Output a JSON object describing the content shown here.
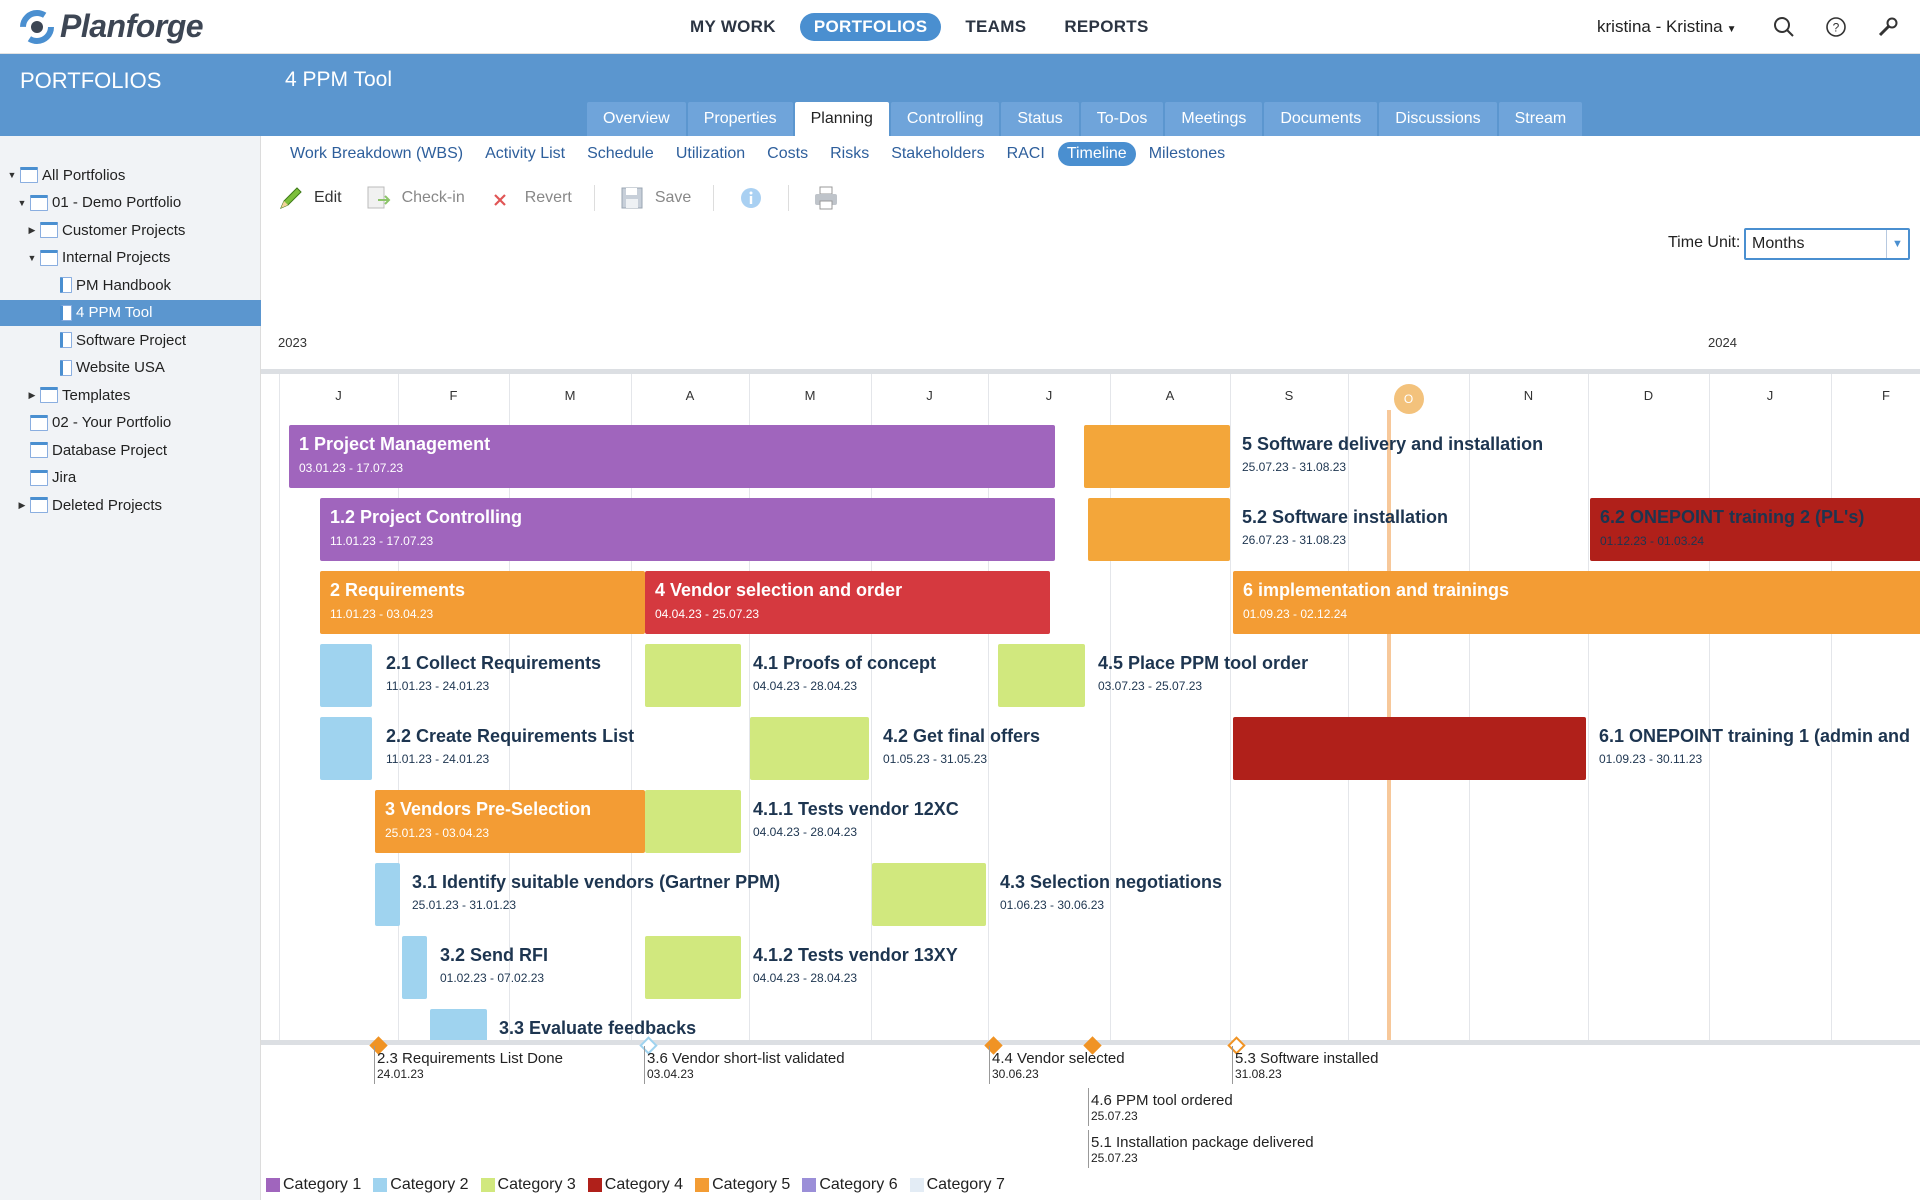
{
  "app": {
    "name": "Planforge",
    "nav": [
      {
        "label": "MY WORK",
        "active": false
      },
      {
        "label": "PORTFOLIOS",
        "active": true
      },
      {
        "label": "TEAMS",
        "active": false
      },
      {
        "label": "REPORTS",
        "active": false
      }
    ],
    "user": "kristina - Kristina"
  },
  "sidebar": {
    "title": "PORTFOLIOS",
    "items": [
      {
        "label": "All Portfolios",
        "level": 0,
        "toggle": "down"
      },
      {
        "label": "01 - Demo Portfolio",
        "level": 1,
        "toggle": "down"
      },
      {
        "label": "Customer Projects",
        "level": 2,
        "toggle": "right"
      },
      {
        "label": "Internal Projects",
        "level": 2,
        "toggle": "down"
      },
      {
        "label": "PM Handbook",
        "level": 3,
        "toggle": ""
      },
      {
        "label": "4 PPM Tool",
        "level": 3,
        "toggle": "",
        "selected": true
      },
      {
        "label": "Software Project",
        "level": 3,
        "toggle": ""
      },
      {
        "label": "Website USA",
        "level": 3,
        "toggle": ""
      },
      {
        "label": "Templates",
        "level": 2,
        "toggle": "right"
      },
      {
        "label": "02 - Your Portfolio",
        "level": 1,
        "toggle": ""
      },
      {
        "label": "Database Project",
        "level": 1,
        "toggle": ""
      },
      {
        "label": "Jira",
        "level": 1,
        "toggle": ""
      },
      {
        "label": "Deleted Projects",
        "level": 1,
        "toggle": "right"
      }
    ]
  },
  "project": {
    "title": "4 PPM Tool"
  },
  "tabs": [
    "Overview",
    "Properties",
    "Planning",
    "Controlling",
    "Status",
    "To-Dos",
    "Meetings",
    "Documents",
    "Discussions",
    "Stream"
  ],
  "active_tab": "Planning",
  "subnav": [
    "Work Breakdown (WBS)",
    "Activity List",
    "Schedule",
    "Utilization",
    "Costs",
    "Risks",
    "Stakeholders",
    "RACI",
    "Timeline",
    "Milestones"
  ],
  "active_subnav": "Timeline",
  "toolbar": {
    "edit": "Edit",
    "checkin": "Check-in",
    "revert": "Revert",
    "save": "Save"
  },
  "time_unit": {
    "label": "Time Unit:",
    "value": "Months"
  },
  "years": [
    "2023",
    "2024"
  ],
  "months": [
    "J",
    "F",
    "M",
    "A",
    "M",
    "J",
    "J",
    "A",
    "S",
    "O",
    "N",
    "D",
    "J",
    "F"
  ],
  "today_month": "O",
  "tasks": [
    {
      "title": "1 Project Management",
      "dates": "03.01.23 - 17.07.23",
      "color": "#a065bd",
      "label": "inside"
    },
    {
      "title": "1.2 Project Controlling",
      "dates": "11.01.23 - 17.07.23",
      "color": "#a065bd",
      "label": "inside"
    },
    {
      "title": "2 Requirements",
      "dates": "11.01.23 - 03.04.23",
      "color": "#f39c34",
      "label": "inside"
    },
    {
      "title": "2.1 Collect Requirements",
      "dates": "11.01.23 - 24.01.23",
      "color": "#9fd3ef",
      "label": "outside"
    },
    {
      "title": "2.2 Create Requirements List",
      "dates": "11.01.23 - 24.01.23",
      "color": "#9fd3ef",
      "label": "outside"
    },
    {
      "title": "3 Vendors Pre-Selection",
      "dates": "25.01.23 - 03.04.23",
      "color": "#f39c34",
      "label": "inside"
    },
    {
      "title": "3.1 Identify suitable vendors (Gartner PPM)",
      "dates": "25.01.23 - 31.01.23",
      "color": "#9fd3ef",
      "label": "outside"
    },
    {
      "title": "3.2 Send RFI",
      "dates": "01.02.23 - 07.02.23",
      "color": "#9fd3ef",
      "label": "outside"
    },
    {
      "title": "3.3 Evaluate feedbacks",
      "dates": "",
      "color": "#9fd3ef",
      "label": "outside"
    },
    {
      "title": "4 Vendor selection and order",
      "dates": "04.04.23 - 25.07.23",
      "color": "#d5393f",
      "label": "inside"
    },
    {
      "title": "4.1 Proofs of concept",
      "dates": "04.04.23 - 28.04.23",
      "color": "#d1e87e",
      "label": "outside"
    },
    {
      "title": "4.2 Get final offers",
      "dates": "01.05.23 - 31.05.23",
      "color": "#d1e87e",
      "label": "outside"
    },
    {
      "title": "4.1.1 Tests vendor 12XC",
      "dates": "04.04.23 - 28.04.23",
      "color": "#d1e87e",
      "label": "outside"
    },
    {
      "title": "4.3 Selection negotiations",
      "dates": "01.06.23 - 30.06.23",
      "color": "#d1e87e",
      "label": "outside"
    },
    {
      "title": "4.1.2 Tests vendor 13XY",
      "dates": "04.04.23 - 28.04.23",
      "color": "#d1e87e",
      "label": "outside"
    },
    {
      "title": "4.5 Place PPM tool order",
      "dates": "03.07.23 - 25.07.23",
      "color": "#d1e87e",
      "label": "outside"
    },
    {
      "title": "5 Software delivery and installation",
      "dates": "25.07.23 - 31.08.23",
      "color": "#f3a63a",
      "label": "outside"
    },
    {
      "title": "5.2 Software installation",
      "dates": "26.07.23 - 31.08.23",
      "color": "#f3a63a",
      "label": "outside"
    },
    {
      "title": "6 implementation and trainings",
      "dates": "01.09.23 - 02.12.24",
      "color": "#f39c34",
      "label": "inside"
    },
    {
      "title": "6.1 ONEPOINT training 1 (admin and",
      "dates": "01.09.23 - 30.11.23",
      "color": "#b0201a",
      "label": "outside"
    },
    {
      "title": "6.2 ONEPOINT training 2 (PL's)",
      "dates": "01.12.23 - 01.03.24",
      "color": "#b0201a",
      "label": "inside-dark"
    }
  ],
  "milestones": [
    {
      "title": "2.3 Requirements List Done",
      "date": "24.01.23",
      "style": "filled"
    },
    {
      "title": "3.6 Vendor short-list validated",
      "date": "03.04.23",
      "style": "lightblue"
    },
    {
      "title": "4.4 Vendor selected",
      "date": "30.06.23",
      "style": "filled"
    },
    {
      "title": "4.6 PPM tool ordered",
      "date": "25.07.23",
      "style": "filled"
    },
    {
      "title": "5.1 Installation package delivered",
      "date": "25.07.23",
      "style": "none"
    },
    {
      "title": "5.3 Software installed",
      "date": "31.08.23",
      "style": "hollow"
    }
  ],
  "legend": [
    {
      "label": "Category 1",
      "color": "#a065bd"
    },
    {
      "label": "Category 2",
      "color": "#9fd3ef"
    },
    {
      "label": "Category 3",
      "color": "#d1e87e"
    },
    {
      "label": "Category 4",
      "color": "#b0201a"
    },
    {
      "label": "Category 5",
      "color": "#f39c34"
    },
    {
      "label": "Category 6",
      "color": "#9b8fd8"
    },
    {
      "label": "Category 7",
      "color": "#e3ecf5"
    }
  ]
}
